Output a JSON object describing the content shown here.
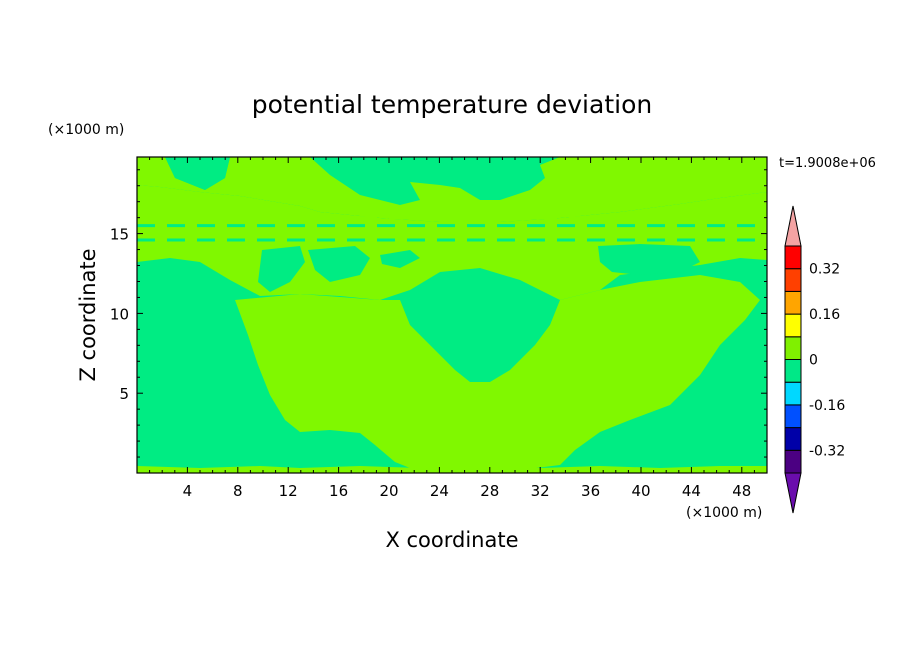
{
  "chart_data": {
    "type": "heatmap",
    "title": "potential temperature deviation",
    "xlabel": "X coordinate",
    "ylabel": "Z coordinate",
    "x_unit": "(×1000 m)",
    "y_unit": "(×1000 m)",
    "time_label": "t=1.9008e+06",
    "xlim": [
      0,
      50
    ],
    "ylim": [
      0,
      19.8
    ],
    "x_ticks": [
      4,
      8,
      12,
      16,
      20,
      24,
      28,
      32,
      36,
      40,
      44,
      48
    ],
    "y_ticks": [
      5,
      10,
      15
    ],
    "colorbar": {
      "levels": [
        -0.4,
        -0.32,
        -0.24,
        -0.16,
        -0.08,
        0,
        0.08,
        0.16,
        0.24,
        0.32,
        0.4
      ],
      "colors": [
        "#4B0082",
        "#0000A8",
        "#0050FF",
        "#00D8FF",
        "#00E887",
        "#80F000",
        "#FFFF00",
        "#FFA500",
        "#FF4000",
        "#FF0000"
      ],
      "under_color": "#6A0DAD",
      "over_color": "#F4A3A3",
      "tick_labels": [
        "0.32",
        "0.16",
        "0",
        "-0.16",
        "-0.32"
      ],
      "tick_values": [
        0.32,
        0.16,
        0,
        -0.16,
        -0.32
      ]
    },
    "field_colors": {
      "green": "#00EC83",
      "lime": "#80F800"
    }
  }
}
